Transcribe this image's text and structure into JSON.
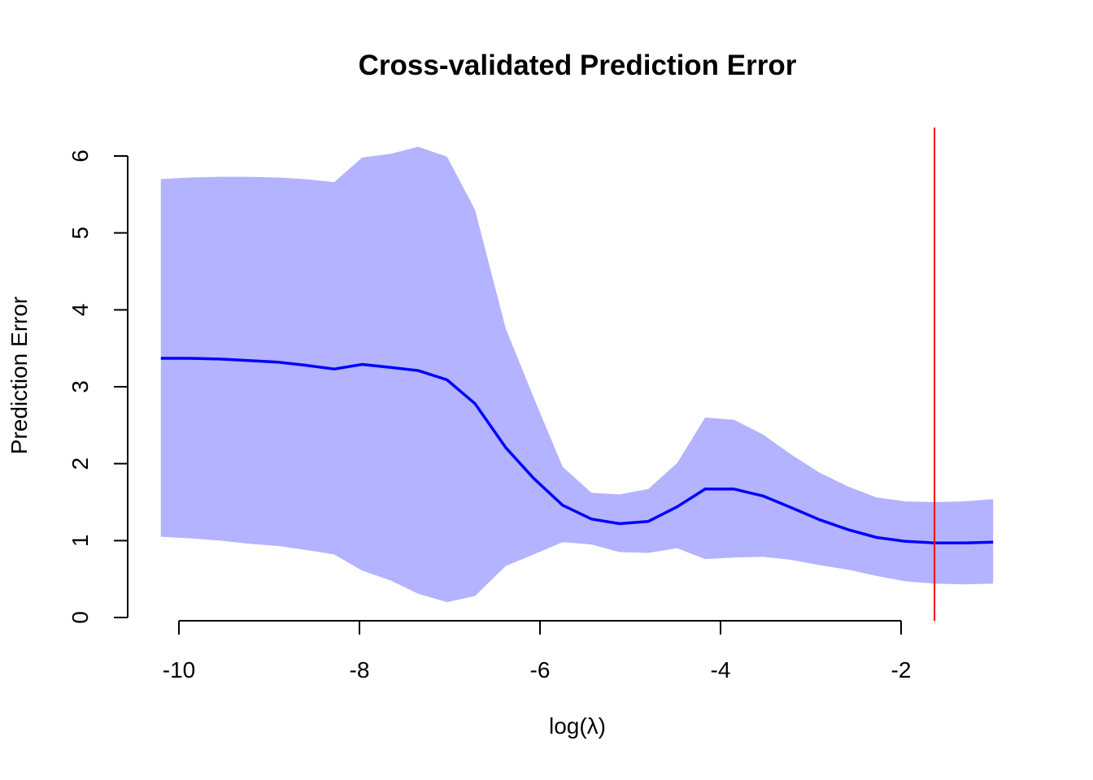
{
  "chart_data": {
    "type": "line",
    "title": "Cross-validated Prediction Error",
    "xlabel": "log(λ)",
    "ylabel": "Prediction Error",
    "xlim": [
      -10.18,
      -0.95
    ],
    "ylim": [
      0,
      6
    ],
    "x_ticks": [
      -10,
      -8,
      -6,
      -4,
      -2
    ],
    "y_ticks": [
      0,
      1,
      2,
      3,
      4,
      5,
      6
    ],
    "x_tick_labels": [
      "-10",
      "-8",
      "-6",
      "-4",
      "-2"
    ],
    "y_tick_labels": [
      "0",
      "1",
      "2",
      "3",
      "4",
      "5",
      "6"
    ],
    "x": [
      -10.2,
      -9.88,
      -9.55,
      -9.23,
      -8.9,
      -8.6,
      -8.28,
      -7.97,
      -7.65,
      -7.35,
      -7.03,
      -6.72,
      -6.38,
      -6.07,
      -5.75,
      -5.43,
      -5.12,
      -4.8,
      -4.48,
      -4.17,
      -3.85,
      -3.53,
      -3.22,
      -2.9,
      -2.58,
      -2.27,
      -1.95,
      -1.63,
      -1.3,
      -0.98
    ],
    "series": [
      {
        "values": [
          3.37,
          3.37,
          3.36,
          3.34,
          3.32,
          3.28,
          3.23,
          3.29,
          3.25,
          3.21,
          3.09,
          2.78,
          2.21,
          1.81,
          1.46,
          1.28,
          1.22,
          1.25,
          1.44,
          1.67,
          1.67,
          1.58,
          1.43,
          1.27,
          1.14,
          1.04,
          0.99,
          0.97,
          0.97,
          0.98
        ],
        "color": "#0000ff"
      }
    ],
    "band": {
      "upper": [
        5.7,
        5.72,
        5.73,
        5.73,
        5.72,
        5.7,
        5.66,
        5.98,
        6.03,
        6.12,
        5.99,
        5.3,
        3.76,
        2.86,
        1.96,
        1.62,
        1.6,
        1.67,
        2.01,
        2.6,
        2.57,
        2.38,
        2.12,
        1.88,
        1.7,
        1.56,
        1.51,
        1.5,
        1.51,
        1.54
      ],
      "lower": [
        1.05,
        1.03,
        1.0,
        0.96,
        0.93,
        0.88,
        0.82,
        0.61,
        0.48,
        0.31,
        0.2,
        0.28,
        0.67,
        0.82,
        0.98,
        0.95,
        0.85,
        0.84,
        0.9,
        0.76,
        0.78,
        0.79,
        0.75,
        0.68,
        0.62,
        0.54,
        0.47,
        0.44,
        0.43,
        0.44
      ],
      "color": "#b3b3ff"
    },
    "vline": {
      "x": -1.63,
      "color": "#ff0000"
    },
    "grid": false,
    "legend": "none"
  }
}
